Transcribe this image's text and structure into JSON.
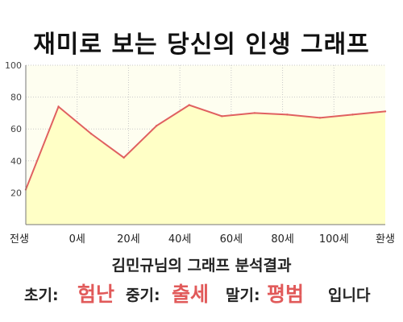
{
  "title": "재미로 보는 당신의 인생 그래프",
  "chart_data": {
    "type": "area",
    "title": "재미로 보는 당신의 인생 그래프",
    "x": [
      0,
      1,
      2,
      3,
      4,
      5,
      6,
      7,
      8,
      9,
      10,
      11
    ],
    "y": [
      22,
      74,
      57,
      42,
      62,
      75,
      68,
      70,
      69,
      67,
      69,
      71
    ],
    "x_tick_labels": [
      "전생",
      "0세",
      "20세",
      "40세",
      "60세",
      "80세",
      "100세",
      "환생"
    ],
    "y_ticks": [
      20,
      40,
      60,
      80,
      100
    ],
    "ylim": [
      0,
      100
    ],
    "grid": true,
    "colors": {
      "line": "#e06060",
      "fill": "#ffffc6",
      "plot_bg": "#fefef0",
      "grid": "#c8c8c8"
    }
  },
  "summary_text": "김민규님의 그래프 분석결과",
  "result": {
    "early_label": "초기:",
    "early_value": "험난",
    "middle_label": "중기:",
    "middle_value": "출세",
    "late_label": "말기:",
    "late_value": "평범",
    "ending": "입니다"
  }
}
